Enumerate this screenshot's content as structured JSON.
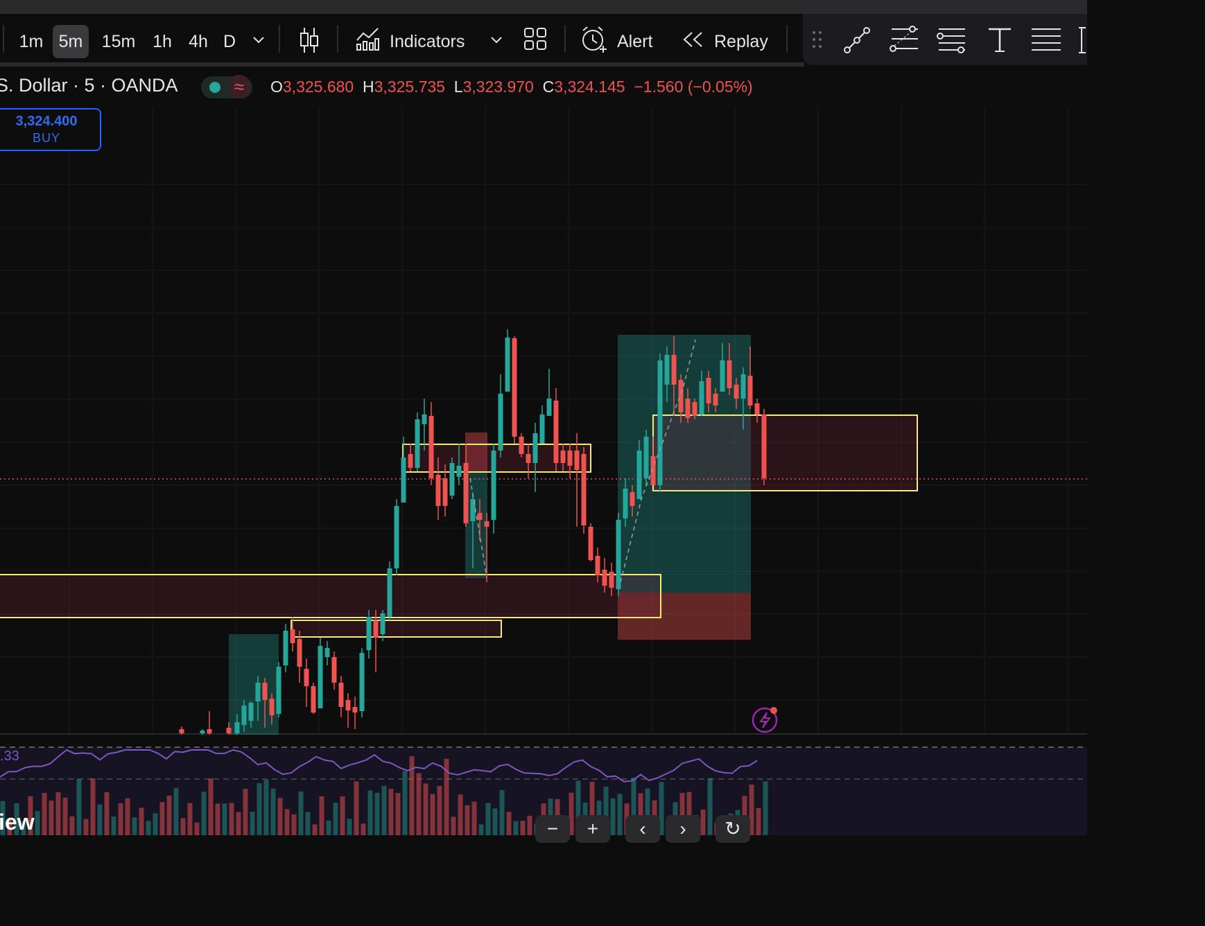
{
  "toolbar": {
    "timeframes": [
      "1m",
      "5m",
      "15m",
      "1h",
      "4h",
      "D"
    ],
    "active_timeframe": "5m",
    "indicators_label": "Indicators",
    "alert_label": "Alert",
    "replay_label": "Replay"
  },
  "symbol": {
    "title": "S. Dollar · 5 · OANDA",
    "ohlc": {
      "o_key": "O",
      "o": "3,325.680",
      "h_key": "H",
      "h": "3,325.735",
      "l_key": "L",
      "l": "3,323.970",
      "c_key": "C",
      "c": "3,324.145",
      "change": "−1.560 (−0.05%)"
    },
    "status_symbol": "≈"
  },
  "order": {
    "price": "3,324.400",
    "side": "BUY"
  },
  "indicator": {
    "rsi_value": ".33"
  },
  "brand": {
    "text": "iew"
  },
  "nav": {
    "zoom_out": "−",
    "zoom_in": "+",
    "prev": "‹",
    "next": "›",
    "reset": "↻"
  },
  "colors": {
    "up": "#26a69a",
    "down": "#ef5350",
    "zone": "#f5eb7a",
    "rsi": "#7e57c2",
    "accent": "#2962ff"
  },
  "icons": [
    "chevron-down-icon",
    "candles-icon",
    "indicators-icon",
    "layout-grid-icon",
    "alert-clock-icon",
    "replay-icon",
    "drag-handle-icon",
    "trend-line-icon",
    "fib-icon",
    "pitchfork-icon",
    "text-icon",
    "lines-icon",
    "lightning-icon"
  ]
}
